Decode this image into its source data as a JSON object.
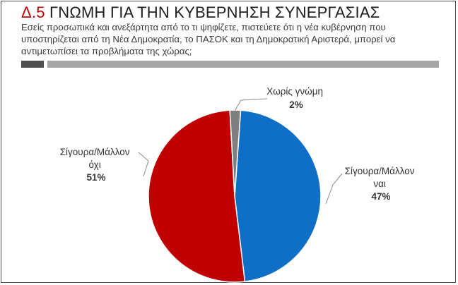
{
  "header": {
    "code": "Δ.5",
    "title": "ΓΝΩΜΗ ΓΙΑ ΤΗΝ ΚΥΒΕΡΝΗΣΗ ΣΥΝΕΡΓΑΣΙΑΣ",
    "subtitle": "Εσείς προσωπικά και ανεξάρτητα από το τι ψηφίζετε, πιστεύετε ότι η νέα κυβέρνηση που υποστηρίζεται από τη Νέα Δημοκρατία, το ΠΑΣΟΚ και τη Δημοκρατική Αριστερά, μπορεί να αντιμετωπίσει τα προβλήματα της χώρας;"
  },
  "chart_data": {
    "type": "pie",
    "slices": [
      {
        "label_lines": [
          "Σίγουρα/Μάλλον",
          "ναι"
        ],
        "value": 47,
        "pct_label": "47%",
        "color": "#0f6fc6"
      },
      {
        "label_lines": [
          "Σίγουρα/Μάλλον",
          "όχι"
        ],
        "value": 51,
        "pct_label": "51%",
        "color": "#c00000"
      },
      {
        "label_lines": [
          "Χωρίς γνώμη"
        ],
        "value": 2,
        "pct_label": "2%",
        "color": "#7f7f7f"
      }
    ]
  },
  "colors": {
    "accent": "#c00000",
    "dark_bar": "#505050",
    "light_bar": "#a6a6a6"
  }
}
